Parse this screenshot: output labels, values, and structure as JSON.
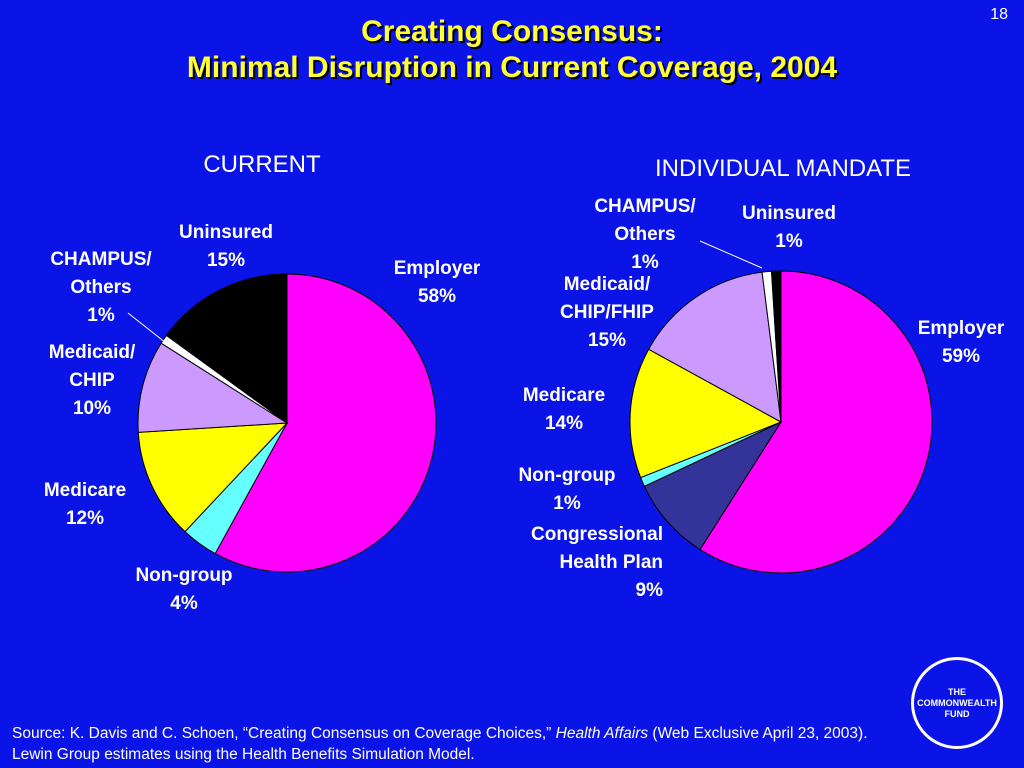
{
  "page_number": "18",
  "title": {
    "line1": "Creating Consensus:",
    "line2": "Minimal Disruption in Current Coverage, 2004"
  },
  "colors": {
    "background": "#0a14e6",
    "title": "#ffff33",
    "employer": "#ff00ff",
    "non_group": "#66ffff",
    "medicare": "#ffff00",
    "medicaid": "#cc99ff",
    "champus": "#ffffff",
    "uninsured": "#000000",
    "congressional": "#333399"
  },
  "chart_data": [
    {
      "type": "pie",
      "title": "CURRENT",
      "slices": [
        {
          "label": [
            "Employer",
            "58%"
          ],
          "value": 58,
          "color": "#ff00ff"
        },
        {
          "label": [
            "Non-group",
            "4%"
          ],
          "value": 4,
          "color": "#66ffff"
        },
        {
          "label": [
            "Medicare",
            "12%"
          ],
          "value": 12,
          "color": "#ffff00"
        },
        {
          "label": [
            "Medicaid/",
            "CHIP",
            "10%"
          ],
          "value": 10,
          "color": "#cc99ff"
        },
        {
          "label": [
            "CHAMPUS/",
            "Others",
            "1%"
          ],
          "value": 1,
          "color": "#ffffff"
        },
        {
          "label": [
            "Uninsured",
            "15%"
          ],
          "value": 15,
          "color": "#000000"
        }
      ]
    },
    {
      "type": "pie",
      "title": "INDIVIDUAL MANDATE",
      "slices": [
        {
          "label": [
            "Employer",
            "59%"
          ],
          "value": 59,
          "color": "#ff00ff"
        },
        {
          "label": [
            "Congressional",
            "Health Plan",
            "9%"
          ],
          "value": 9,
          "color": "#333399"
        },
        {
          "label": [
            "Non-group",
            "1%"
          ],
          "value": 1,
          "color": "#66ffff"
        },
        {
          "label": [
            "Medicare",
            "14%"
          ],
          "value": 14,
          "color": "#ffff00"
        },
        {
          "label": [
            "Medicaid/",
            "CHIP/FHIP",
            "15%"
          ],
          "value": 15,
          "color": "#cc99ff"
        },
        {
          "label": [
            "CHAMPUS/",
            "Others",
            "1%"
          ],
          "value": 1,
          "color": "#ffffff"
        },
        {
          "label": [
            "Uninsured",
            "1%"
          ],
          "value": 1,
          "color": "#000000"
        }
      ]
    }
  ],
  "source": {
    "prefix": "Source: K. Davis and C. Schoen, “Creating Consensus on Coverage Choices,” ",
    "journal": "Health Affairs",
    "suffix": " (Web Exclusive April 23, 2003). Lewin Group estimates using the Health Benefits Simulation Model."
  },
  "logo": {
    "line1": "THE",
    "line2": "COMMONWEALTH",
    "line3": "FUND"
  }
}
